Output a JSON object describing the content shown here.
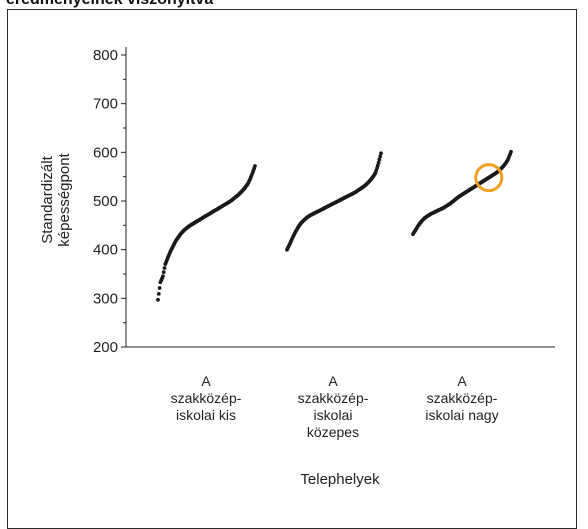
{
  "header": {
    "cut_title": "eredményeinek viszonyítva"
  },
  "chart_data": {
    "type": "scatter",
    "subtype": "sorted-dot-distribution",
    "ylabel_lines": [
      "Standardizált",
      "képességpont"
    ],
    "xlabel": "Telephelyek",
    "ylim": [
      200,
      800
    ],
    "yticks": [
      200,
      300,
      400,
      500,
      600,
      700,
      800
    ],
    "grid": false,
    "categories": [
      {
        "lines": [
          "A",
          "szakközép-",
          "iskolai kis"
        ]
      },
      {
        "lines": [
          "A",
          "szakközép-",
          "iskolai",
          "közepes"
        ]
      },
      {
        "lines": [
          "A",
          "szakközép-",
          "iskolai nagy"
        ]
      }
    ],
    "series": [
      {
        "category_index": 0,
        "values": [
          297,
          333,
          345,
          370,
          383,
          395,
          405,
          415,
          423,
          430,
          436,
          441,
          445,
          449,
          452,
          455,
          458,
          461,
          464,
          467,
          470,
          473,
          476,
          479,
          482,
          485,
          488,
          491,
          494,
          497,
          500,
          504,
          508,
          512,
          517,
          522,
          528,
          535,
          545,
          558,
          572
        ]
      },
      {
        "category_index": 1,
        "values": [
          400,
          412,
          425,
          437,
          447,
          455,
          461,
          466,
          470,
          473,
          476,
          479,
          482,
          485,
          488,
          491,
          494,
          497,
          500,
          503,
          506,
          509,
          512,
          515,
          518,
          522,
          526,
          530,
          535,
          541,
          548,
          557,
          575,
          598
        ]
      },
      {
        "category_index": 2,
        "values": [
          432,
          442,
          452,
          460,
          466,
          470,
          474,
          477,
          480,
          483,
          486,
          490,
          494,
          499,
          504,
          509,
          513,
          517,
          521,
          525,
          529,
          533,
          537,
          541,
          545,
          549,
          553,
          557,
          562,
          568,
          575,
          585,
          601
        ]
      }
    ],
    "highlight": {
      "category_index": 2,
      "value": 548,
      "color": "#f0a020"
    },
    "point_color": "#1a1a1a",
    "axis_color": "#222222"
  }
}
